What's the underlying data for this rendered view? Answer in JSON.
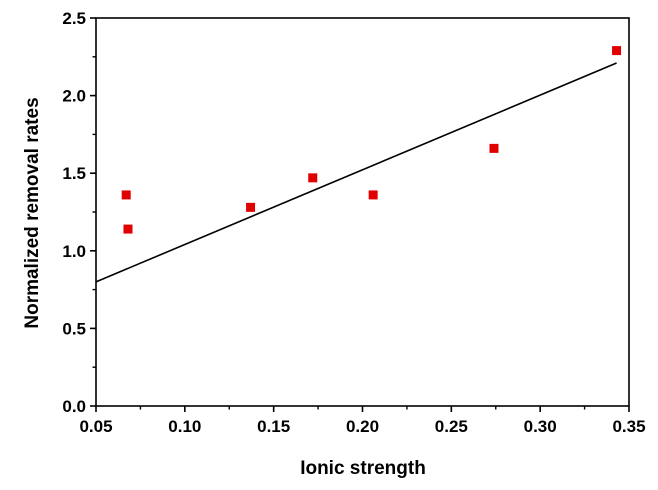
{
  "chart_data": {
    "type": "scatter",
    "title": "",
    "xlabel": "Ionic strength",
    "ylabel": "Normalized removal rates",
    "xlim": [
      0.05,
      0.35
    ],
    "ylim": [
      0.0,
      2.5
    ],
    "xticks": [
      "0.05",
      "0.10",
      "0.15",
      "0.20",
      "0.25",
      "0.30",
      "0.35"
    ],
    "yticks": [
      "0.0",
      "0.5",
      "1.0",
      "1.5",
      "2.0",
      "2.5"
    ],
    "grid": false,
    "legend": "none",
    "series": [
      {
        "kind": "scatter",
        "marker": "square",
        "color": "#e00000",
        "points": [
          {
            "x": 0.067,
            "y": 1.36
          },
          {
            "x": 0.068,
            "y": 1.14
          },
          {
            "x": 0.137,
            "y": 1.28
          },
          {
            "x": 0.172,
            "y": 1.47
          },
          {
            "x": 0.206,
            "y": 1.36
          },
          {
            "x": 0.274,
            "y": 1.66
          },
          {
            "x": 0.343,
            "y": 2.29
          }
        ]
      },
      {
        "kind": "line",
        "fit": "linear",
        "color": "#000000",
        "points": [
          {
            "x": 0.05,
            "y": 0.8
          },
          {
            "x": 0.343,
            "y": 2.21
          }
        ]
      }
    ]
  }
}
